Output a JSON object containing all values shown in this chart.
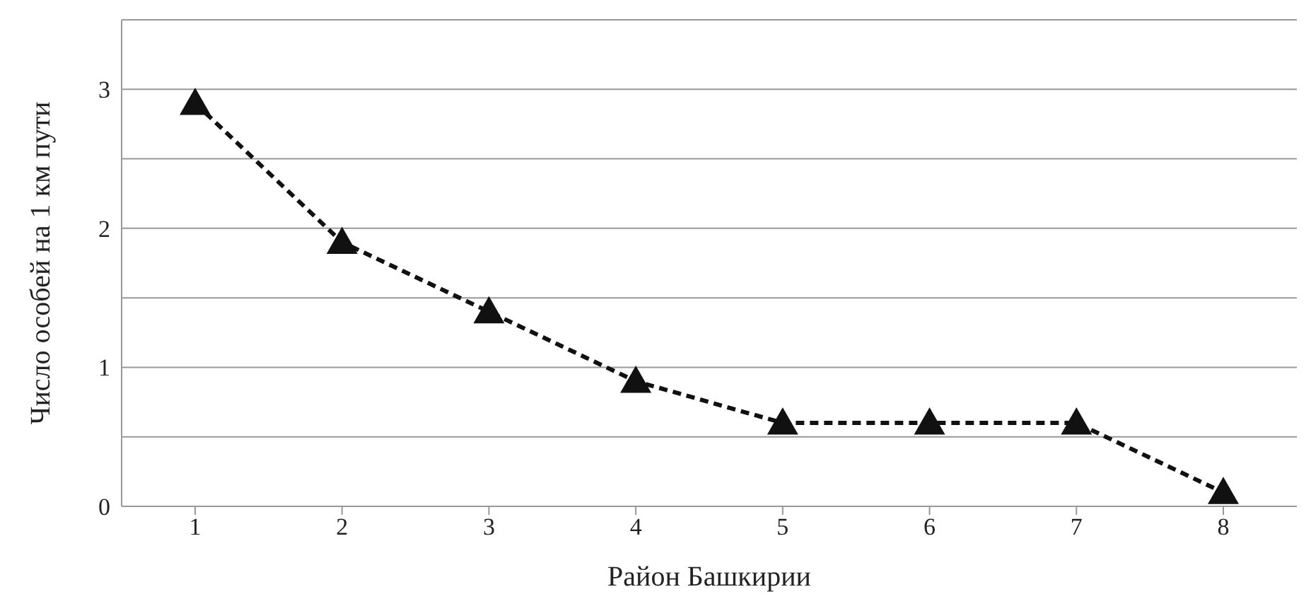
{
  "chart_data": {
    "type": "line",
    "xlabel": "Район  Башкирии",
    "ylabel": "Число особей на 1 км пути",
    "categories": [
      "1",
      "2",
      "3",
      "4",
      "5",
      "6",
      "7",
      "8"
    ],
    "series": [
      {
        "color": "#111111",
        "values": [
          2.9,
          1.9,
          1.4,
          0.9,
          0.6,
          0.6,
          0.6,
          0.1
        ]
      }
    ],
    "ylim": [
      0,
      3.5
    ],
    "yticks": [
      0,
      {
        "value": 0.5,
        "label": null
      },
      1,
      {
        "value": 1.5,
        "label": null
      },
      2,
      {
        "value": 2.5,
        "label": null
      },
      3,
      {
        "value": 3.5,
        "label": null
      }
    ],
    "grid": "y",
    "legend": false,
    "marker": "triangle",
    "line_style": "dashed"
  }
}
